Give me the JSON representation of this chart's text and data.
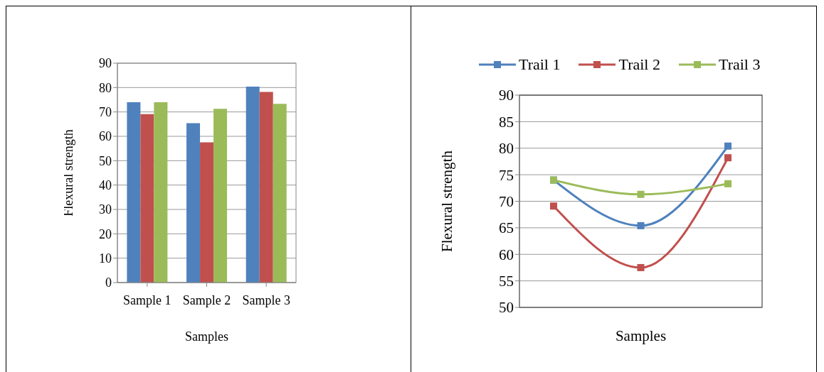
{
  "chart_data": [
    {
      "type": "bar",
      "xlabel": "Samples",
      "ylabel": "Flexural strength",
      "categories": [
        "Sample 1",
        "Sample 2",
        "Sample 3"
      ],
      "series": [
        {
          "color": "#4f81bd",
          "values": [
            74,
            65.4,
            80.4
          ]
        },
        {
          "color": "#c0504d",
          "values": [
            69.1,
            57.5,
            78.2
          ]
        },
        {
          "color": "#9bbb59",
          "values": [
            74,
            71.3,
            73.3
          ]
        }
      ],
      "ylim": [
        0,
        90
      ],
      "yticks": [
        0,
        10,
        20,
        30,
        40,
        50,
        60,
        70,
        80,
        90
      ],
      "grid": "y",
      "legend": false
    },
    {
      "type": "line",
      "xlabel": "Samples",
      "ylabel": "Flexural strength",
      "categories": [
        null,
        null,
        null
      ],
      "series": [
        {
          "name": "Trail 1",
          "color": "#4f81bd",
          "values": [
            74,
            65.4,
            80.4
          ]
        },
        {
          "name": "Trail 2",
          "color": "#c0504d",
          "values": [
            69.1,
            57.5,
            78.2
          ]
        },
        {
          "name": "Trail 3",
          "color": "#9bbb59",
          "values": [
            74,
            71.3,
            73.3
          ]
        }
      ],
      "ylim": [
        50,
        90
      ],
      "yticks": [
        50,
        55,
        60,
        65,
        70,
        75,
        80,
        85,
        90
      ],
      "grid": "y",
      "legend": "top",
      "marker": "square",
      "line_style": "solid"
    }
  ]
}
